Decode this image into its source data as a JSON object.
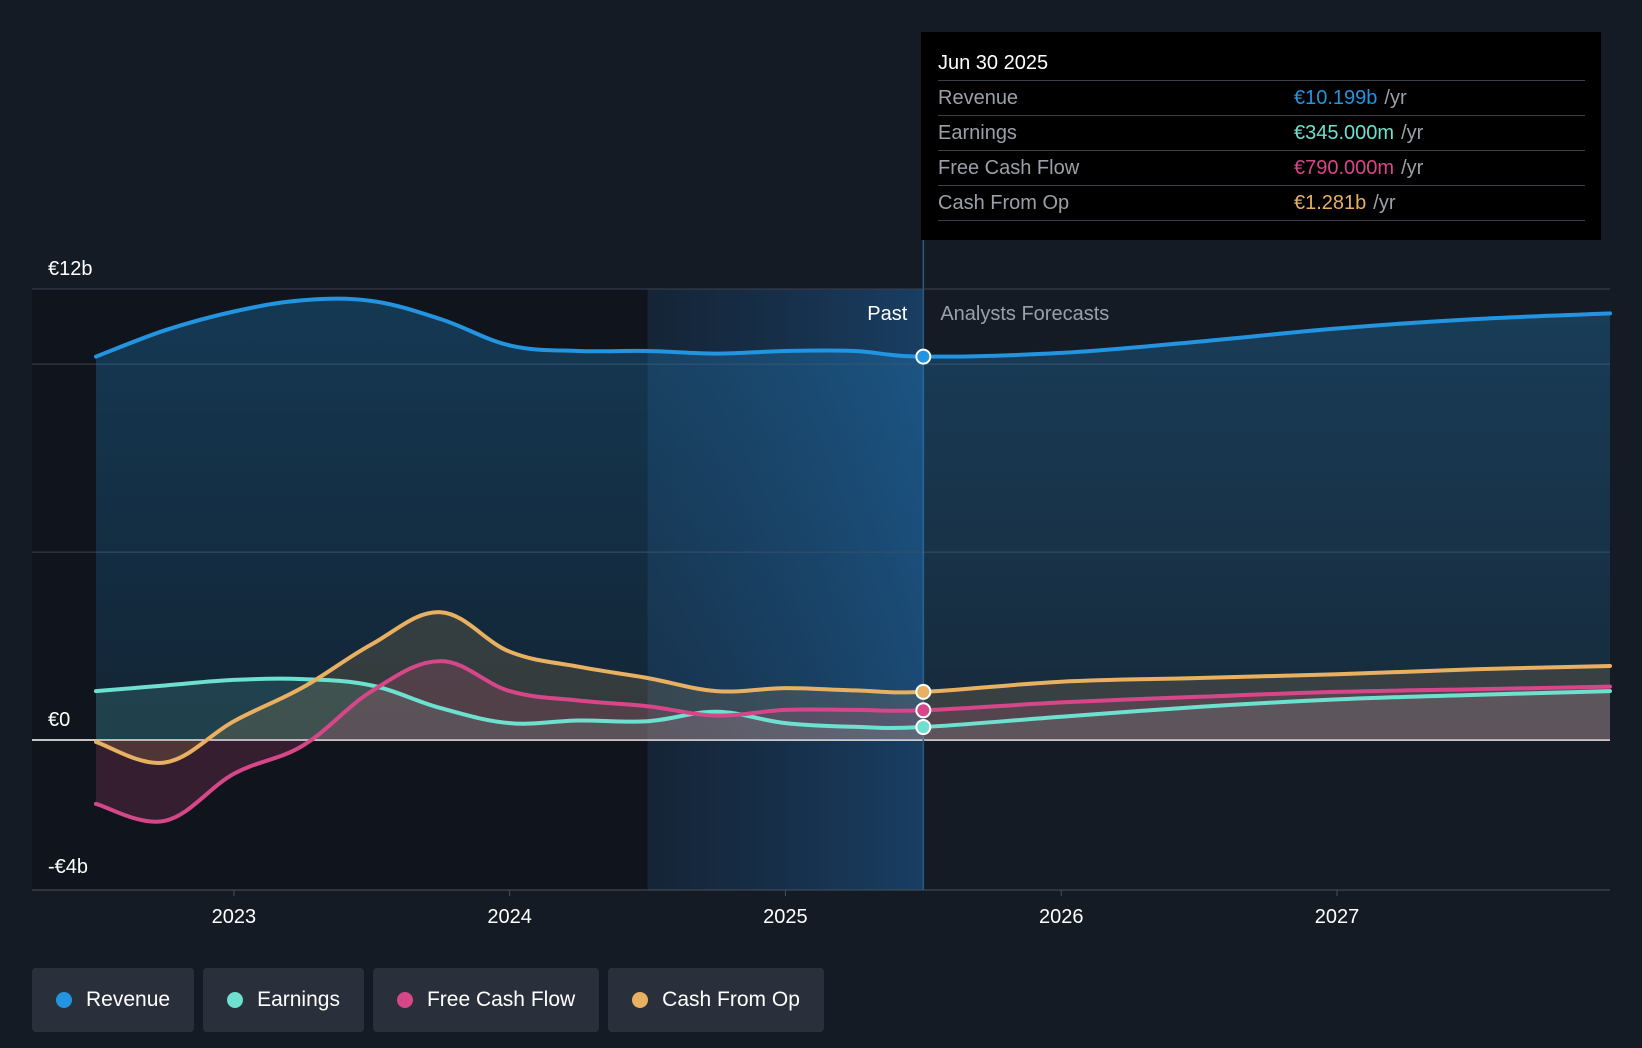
{
  "chart_data": {
    "type": "area",
    "title": "",
    "xlabel": "",
    "ylabel": "",
    "ylim": [
      -4,
      12
    ],
    "y_unit": "EUR billions",
    "y_tick_labels": [
      {
        "value": 12,
        "label": "€12b"
      },
      {
        "value": 0,
        "label": "€0"
      },
      {
        "value": -4,
        "label": "-€4b"
      }
    ],
    "gridlines": [
      12,
      10,
      5
    ],
    "x_range": [
      2022.5,
      2027.99
    ],
    "x_ticks": [
      {
        "value": 2023,
        "label": "2023"
      },
      {
        "value": 2024,
        "label": "2024"
      },
      {
        "value": 2025,
        "label": "2025"
      },
      {
        "value": 2026,
        "label": "2026"
      },
      {
        "value": 2027,
        "label": "2027"
      }
    ],
    "past_label": "Past",
    "forecast_label": "Analysts Forecasts",
    "divider_x": 2025.5,
    "highlight_start_x": 2024.5,
    "series": [
      {
        "name": "Revenue",
        "color": "#2394df",
        "points": [
          [
            2022.5,
            10.2
          ],
          [
            2022.75,
            10.9
          ],
          [
            2023.0,
            11.4
          ],
          [
            2023.25,
            11.7
          ],
          [
            2023.5,
            11.68
          ],
          [
            2023.75,
            11.2
          ],
          [
            2024.0,
            10.5
          ],
          [
            2024.25,
            10.35
          ],
          [
            2024.5,
            10.35
          ],
          [
            2024.75,
            10.28
          ],
          [
            2025.0,
            10.35
          ],
          [
            2025.25,
            10.35
          ],
          [
            2025.5,
            10.2
          ],
          [
            2026.0,
            10.3
          ],
          [
            2026.5,
            10.6
          ],
          [
            2027.0,
            10.95
          ],
          [
            2027.5,
            11.2
          ],
          [
            2027.99,
            11.35
          ]
        ]
      },
      {
        "name": "Earnings",
        "color": "#6ee0cf",
        "points": [
          [
            2022.5,
            1.3
          ],
          [
            2022.75,
            1.45
          ],
          [
            2023.0,
            1.6
          ],
          [
            2023.25,
            1.62
          ],
          [
            2023.5,
            1.45
          ],
          [
            2023.75,
            0.85
          ],
          [
            2024.0,
            0.45
          ],
          [
            2024.25,
            0.52
          ],
          [
            2024.5,
            0.5
          ],
          [
            2024.75,
            0.75
          ],
          [
            2025.0,
            0.45
          ],
          [
            2025.25,
            0.35
          ],
          [
            2025.5,
            0.345
          ],
          [
            2026.0,
            0.62
          ],
          [
            2026.5,
            0.88
          ],
          [
            2027.0,
            1.08
          ],
          [
            2027.5,
            1.2
          ],
          [
            2027.99,
            1.3
          ]
        ]
      },
      {
        "name": "Free Cash Flow",
        "color": "#d6478a",
        "points": [
          [
            2022.5,
            -1.7
          ],
          [
            2022.75,
            -2.15
          ],
          [
            2023.0,
            -0.9
          ],
          [
            2023.25,
            -0.15
          ],
          [
            2023.5,
            1.3
          ],
          [
            2023.75,
            2.1
          ],
          [
            2024.0,
            1.3
          ],
          [
            2024.25,
            1.05
          ],
          [
            2024.5,
            0.9
          ],
          [
            2024.75,
            0.65
          ],
          [
            2025.0,
            0.8
          ],
          [
            2025.25,
            0.8
          ],
          [
            2025.5,
            0.79
          ],
          [
            2026.0,
            1.0
          ],
          [
            2026.5,
            1.15
          ],
          [
            2027.0,
            1.28
          ],
          [
            2027.5,
            1.35
          ],
          [
            2027.99,
            1.42
          ]
        ]
      },
      {
        "name": "Cash From Op",
        "color": "#e8b060",
        "points": [
          [
            2022.5,
            -0.05
          ],
          [
            2022.75,
            -0.6
          ],
          [
            2023.0,
            0.5
          ],
          [
            2023.25,
            1.4
          ],
          [
            2023.5,
            2.55
          ],
          [
            2023.75,
            3.4
          ],
          [
            2024.0,
            2.35
          ],
          [
            2024.25,
            1.95
          ],
          [
            2024.5,
            1.65
          ],
          [
            2024.75,
            1.3
          ],
          [
            2025.0,
            1.38
          ],
          [
            2025.25,
            1.32
          ],
          [
            2025.5,
            1.281
          ],
          [
            2026.0,
            1.55
          ],
          [
            2026.5,
            1.65
          ],
          [
            2027.0,
            1.75
          ],
          [
            2027.5,
            1.88
          ],
          [
            2027.99,
            1.97
          ]
        ]
      }
    ]
  },
  "tooltip": {
    "date": "Jun 30 2025",
    "rows": [
      {
        "label": "Revenue",
        "value": "€10.199b",
        "unit": "/yr",
        "color": "#2394df"
      },
      {
        "label": "Earnings",
        "value": "€345.000m",
        "unit": "/yr",
        "color": "#6ee0cf"
      },
      {
        "label": "Free Cash Flow",
        "value": "€790.000m",
        "unit": "/yr",
        "color": "#d6478a"
      },
      {
        "label": "Cash From Op",
        "value": "€1.281b",
        "unit": "/yr",
        "color": "#e8b060"
      }
    ]
  },
  "legend": [
    {
      "label": "Revenue",
      "color": "#2394df"
    },
    {
      "label": "Earnings",
      "color": "#6ee0cf"
    },
    {
      "label": "Free Cash Flow",
      "color": "#d6478a"
    },
    {
      "label": "Cash From Op",
      "color": "#e8b060"
    }
  ]
}
